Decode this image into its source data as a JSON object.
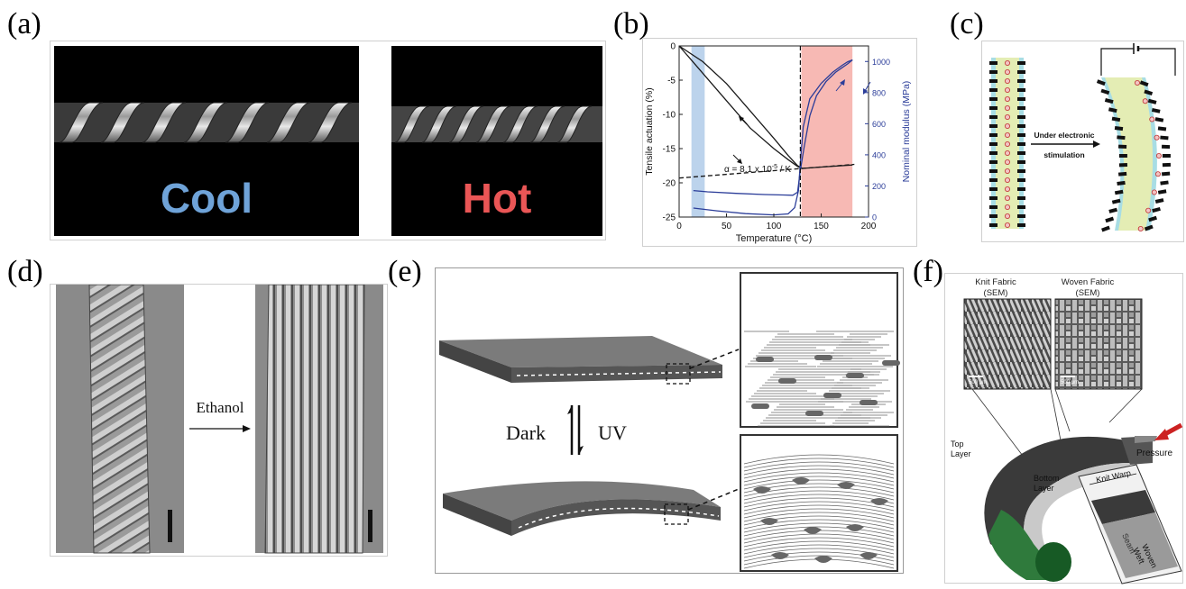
{
  "panels": {
    "a": {
      "label": "(a)",
      "cool_text": "Cool",
      "hot_text": "Hot",
      "colors": {
        "cool": "#6fa3d8",
        "hot": "#ea5656"
      }
    },
    "b": {
      "label": "(b)",
      "annotation_alpha": "α = 8.1 x 10",
      "annotation_exp": "-5",
      "annotation_unit": " / K"
    },
    "c": {
      "label": "(c)",
      "arrow_label_line1": "Under electronic",
      "arrow_label_line2": "stimulation"
    },
    "d": {
      "label": "(d)",
      "arrow_label": "Ethanol"
    },
    "e": {
      "label": "(e)",
      "left_label": "Dark",
      "right_label": "UV"
    },
    "f": {
      "label": "(f)",
      "knit_title_1": "Knit Fabric",
      "knit_title_2": "(SEM)",
      "woven_title_1": "Woven Fabric",
      "woven_title_2": "(SEM)",
      "scale_knit": "500 µm",
      "scale_woven": "500 µm",
      "pressure": "Pressure",
      "top_layer_1": "Top",
      "top_layer_2": "Layer",
      "bottom_layer_1": "Bottom",
      "bottom_layer_2": "Layer",
      "knit_warp": "Knit Warp",
      "seam": "Seam",
      "woven_1": "Woven",
      "woven_2": "Weft"
    }
  },
  "chart_data": {
    "type": "line",
    "xlabel": "Temperature (°C)",
    "ylabel": "Tensile actuation (%)",
    "y2label": "Nominal modulus (MPa)",
    "xlim": [
      0,
      200
    ],
    "ylim": [
      -25,
      0
    ],
    "y2lim": [
      0,
      1100
    ],
    "x_ticks": [
      0,
      50,
      100,
      150,
      200
    ],
    "y_ticks": [
      0,
      -5,
      -10,
      -15,
      -20,
      -25
    ],
    "y2_ticks": [
      0,
      200,
      400,
      600,
      800,
      1000
    ],
    "shaded_regions": [
      {
        "x": [
          13,
          27
        ],
        "color": "#bcd3ec"
      },
      {
        "x": [
          129,
          183
        ],
        "color": "#f7b9b4"
      }
    ],
    "vline_x": 128,
    "series": [
      {
        "axis": "left",
        "color": "#1a1a1a",
        "x": [
          0,
          25,
          50,
          75,
          100,
          115,
          125,
          130
        ],
        "y": [
          0,
          -2.3,
          -5.5,
          -9.5,
          -13.5,
          -16,
          -17.5,
          -17.9
        ]
      },
      {
        "axis": "left",
        "color": "#1a1a1a",
        "x": [
          0,
          25,
          50,
          75,
          100,
          115,
          125,
          130,
          150,
          183
        ],
        "y": [
          0,
          -4.0,
          -8.0,
          -12.0,
          -15.0,
          -16.6,
          -17.6,
          -17.9,
          -17.7,
          -17.4
        ]
      },
      {
        "axis": "left",
        "color": "#1a1a1a",
        "dashed": true,
        "x": [
          0,
          185
        ],
        "y": [
          -19.3,
          -17.3
        ]
      },
      {
        "axis": "right",
        "color": "#2b3d99",
        "x": [
          15,
          30,
          60,
          90,
          110,
          120,
          125,
          128,
          132,
          138,
          145,
          155,
          165,
          172,
          178,
          183
        ],
        "y": [
          170,
          162,
          152,
          145,
          142,
          140,
          160,
          300,
          450,
          650,
          780,
          870,
          930,
          960,
          985,
          1010
        ]
      },
      {
        "axis": "right",
        "color": "#2b3d99",
        "x": [
          15,
          40,
          70,
          100,
          115,
          122,
          126,
          128,
          131,
          138,
          150,
          162,
          172,
          178,
          183
        ],
        "y": [
          58,
          40,
          22,
          14,
          20,
          60,
          170,
          350,
          580,
          760,
          860,
          930,
          975,
          998,
          1010
        ]
      }
    ]
  }
}
